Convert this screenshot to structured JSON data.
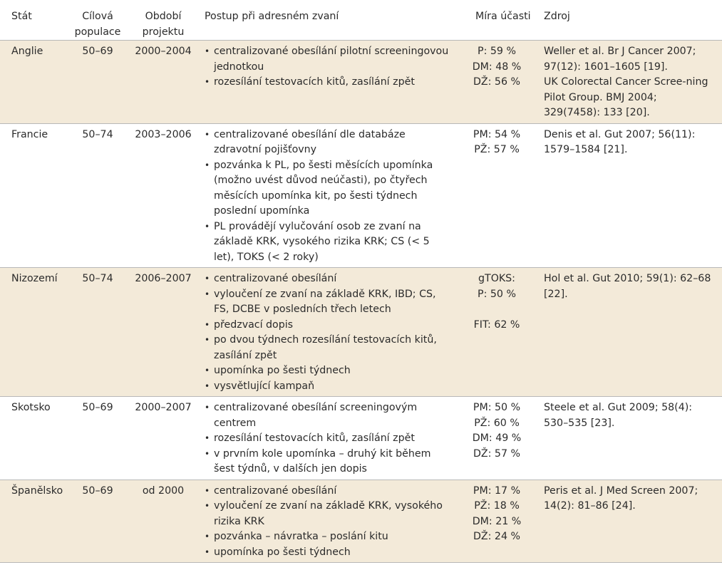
{
  "headers": {
    "state": "Stát",
    "population": "Cílová populace",
    "period": "Období projektu",
    "procedure": "Postup při adresném zvaní",
    "participation": "Míra účasti",
    "source": "Zdroj"
  },
  "rows": [
    {
      "state": "Anglie",
      "population": "50–69",
      "period": "2000–2004",
      "steps": [
        "centralizované obesílání pilotní screeningovou jednotkou",
        "rozesílání testovacích kitů, zasílání zpět"
      ],
      "participation": [
        "P: 59 %",
        "DM: 48 %",
        "DŽ: 56 %"
      ],
      "source": [
        "Weller et al. Br J Cancer 2007; 97(12): 1601–1605 [19].",
        "UK Colorectal Cancer Scree-ning Pilot Group. BMJ 2004; 329(7458): 133 [20]."
      ]
    },
    {
      "state": "Francie",
      "population": "50–74",
      "period": "2003–2006",
      "steps": [
        "centralizované obesílání dle databáze zdravotní pojišťovny",
        "pozvánka k PL, po šesti měsících upomínka (možno uvést důvod neúčasti), po čtyřech měsících upomínka kit, po šesti týdnech poslední upomínka",
        "PL provádějí vylučování osob ze zvaní na základě KRK, vysokého rizika KRK; CS (< 5 let), TOKS (< 2 roky)"
      ],
      "participation": [
        "PM: 54 %",
        "PŽ: 57 %"
      ],
      "source": [
        "Denis et al. Gut 2007; 56(11): 1579–1584 [21]."
      ]
    },
    {
      "state": "Nizozemí",
      "population": "50–74",
      "period": "2006–2007",
      "steps": [
        "centralizované obesílání",
        "vyloučení ze zvaní na základě KRK, IBD; CS, FS, DCBE v posledních třech letech",
        "předzvací dopis",
        "po dvou týdnech rozesílání testovacích kitů, zasílání zpět",
        "upomínka po šesti týdnech",
        "vysvětlující kampaň"
      ],
      "participation": [
        "gTOKS:",
        "P: 50 %",
        "",
        "FIT: 62 %"
      ],
      "source": [
        "Hol et al. Gut 2010; 59(1): 62–68 [22]."
      ]
    },
    {
      "state": "Skotsko",
      "population": "50–69",
      "period": "2000–2007",
      "steps": [
        "centralizované obesílání screeningovým centrem",
        "rozesílání testovacích kitů, zasílání zpět",
        "v prvním kole upomínka – druhý kit během šest týdnů, v dalších jen dopis"
      ],
      "participation": [
        "PM: 50 %",
        "PŽ: 60 %",
        "DM: 49 %",
        "DŽ: 57 %"
      ],
      "source": [
        "Steele et al. Gut 2009; 58(4): 530–535 [23]."
      ]
    },
    {
      "state": "Španělsko",
      "population": "50–69",
      "period": "od 2000",
      "steps": [
        "centralizované obesílání",
        "vyloučení ze zvaní na základě KRK, vysokého rizika KRK",
        "pozvánka – návratka – poslání kitu",
        "upomínka po šesti týdnech"
      ],
      "participation": [
        "PM: 17 %",
        "PŽ: 18 %",
        "DM: 21 %",
        "DŽ: 24 %"
      ],
      "source": [
        "Peris et al. J Med Screen 2007; 14(2): 81–86 [24]."
      ]
    }
  ]
}
